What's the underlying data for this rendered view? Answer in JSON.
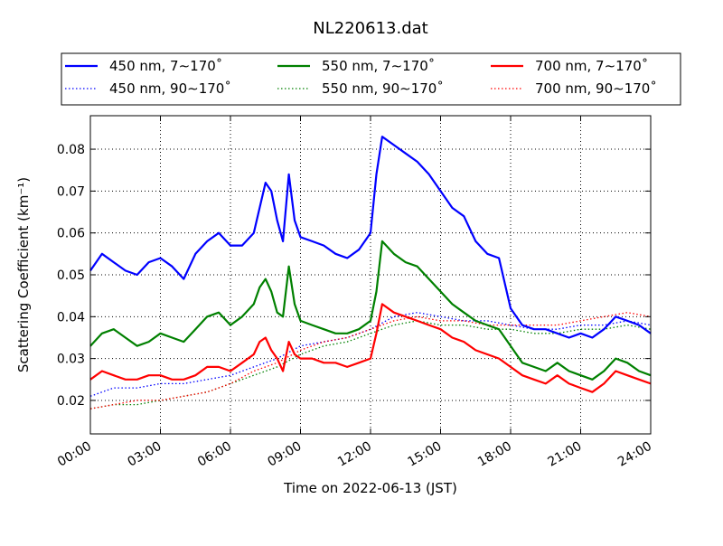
{
  "chart_data": {
    "type": "line",
    "title": "NL220613.dat",
    "xlabel": "Time on 2022-06-13 (JST)",
    "ylabel": "Scattering Coefficient (km⁻¹)",
    "x_unit": "hours",
    "xlim": [
      0,
      24
    ],
    "ylim": [
      0.012,
      0.088
    ],
    "xticks": [
      0,
      3,
      6,
      9,
      12,
      15,
      18,
      21,
      24
    ],
    "xtick_labels": [
      "00:00",
      "03:00",
      "06:00",
      "09:00",
      "12:00",
      "15:00",
      "18:00",
      "21:00",
      "24:00"
    ],
    "yticks": [
      0.02,
      0.03,
      0.04,
      0.05,
      0.06,
      0.07,
      0.08
    ],
    "ytick_labels": [
      "0.02",
      "0.03",
      "0.04",
      "0.05",
      "0.06",
      "0.07",
      "0.08"
    ],
    "grid": true,
    "legend_position": "top, above plot, 3 columns",
    "series": [
      {
        "name": "450 nm, 7∼170˚",
        "color": "#0000ff",
        "style": "solid",
        "x": [
          0,
          0.5,
          1,
          1.5,
          2,
          2.5,
          3,
          3.5,
          4,
          4.5,
          5,
          5.5,
          6,
          6.5,
          7,
          7.25,
          7.5,
          7.75,
          8,
          8.25,
          8.5,
          8.75,
          9,
          9.5,
          10,
          10.5,
          11,
          11.5,
          12,
          12.25,
          12.5,
          13,
          13.5,
          14,
          14.5,
          15,
          15.5,
          16,
          16.5,
          17,
          17.5,
          18,
          18.5,
          19,
          19.5,
          20,
          20.5,
          21,
          21.5,
          22,
          22.5,
          23,
          23.5,
          24
        ],
        "values": [
          0.051,
          0.055,
          0.053,
          0.051,
          0.05,
          0.053,
          0.054,
          0.052,
          0.049,
          0.055,
          0.058,
          0.06,
          0.057,
          0.057,
          0.06,
          0.066,
          0.072,
          0.07,
          0.063,
          0.058,
          0.074,
          0.063,
          0.059,
          0.058,
          0.057,
          0.055,
          0.054,
          0.056,
          0.06,
          0.074,
          0.083,
          0.081,
          0.079,
          0.077,
          0.074,
          0.07,
          0.066,
          0.064,
          0.058,
          0.055,
          0.054,
          0.042,
          0.038,
          0.037,
          0.037,
          0.036,
          0.035,
          0.036,
          0.035,
          0.037,
          0.04,
          0.039,
          0.038,
          0.036
        ]
      },
      {
        "name": "450 nm, 90∼170˚",
        "color": "#0000ff",
        "style": "dotted",
        "x": [
          0,
          1,
          2,
          3,
          4,
          5,
          6,
          7,
          8,
          9,
          10,
          11,
          12,
          13,
          14,
          15,
          16,
          17,
          18,
          19,
          20,
          21,
          22,
          23,
          24
        ],
        "values": [
          0.021,
          0.023,
          0.023,
          0.024,
          0.024,
          0.025,
          0.026,
          0.028,
          0.03,
          0.033,
          0.034,
          0.035,
          0.037,
          0.04,
          0.041,
          0.04,
          0.039,
          0.039,
          0.038,
          0.037,
          0.037,
          0.038,
          0.038,
          0.039,
          0.038
        ]
      },
      {
        "name": "550 nm, 7∼170˚",
        "color": "#008000",
        "style": "solid",
        "x": [
          0,
          0.5,
          1,
          1.5,
          2,
          2.5,
          3,
          3.5,
          4,
          4.5,
          5,
          5.5,
          6,
          6.5,
          7,
          7.25,
          7.5,
          7.75,
          8,
          8.25,
          8.5,
          8.75,
          9,
          9.5,
          10,
          10.5,
          11,
          11.5,
          12,
          12.25,
          12.5,
          13,
          13.5,
          14,
          14.5,
          15,
          15.5,
          16,
          16.5,
          17,
          17.5,
          18,
          18.5,
          19,
          19.5,
          20,
          20.5,
          21,
          21.5,
          22,
          22.5,
          23,
          23.5,
          24
        ],
        "values": [
          0.033,
          0.036,
          0.037,
          0.035,
          0.033,
          0.034,
          0.036,
          0.035,
          0.034,
          0.037,
          0.04,
          0.041,
          0.038,
          0.04,
          0.043,
          0.047,
          0.049,
          0.046,
          0.041,
          0.04,
          0.052,
          0.043,
          0.039,
          0.038,
          0.037,
          0.036,
          0.036,
          0.037,
          0.039,
          0.046,
          0.058,
          0.055,
          0.053,
          0.052,
          0.049,
          0.046,
          0.043,
          0.041,
          0.039,
          0.038,
          0.037,
          0.033,
          0.029,
          0.028,
          0.027,
          0.029,
          0.027,
          0.026,
          0.025,
          0.027,
          0.03,
          0.029,
          0.027,
          0.026
        ]
      },
      {
        "name": "550 nm, 90∼170˚",
        "color": "#008000",
        "style": "dotted",
        "x": [
          0,
          1,
          2,
          3,
          4,
          5,
          6,
          7,
          8,
          9,
          10,
          11,
          12,
          13,
          14,
          15,
          16,
          17,
          18,
          19,
          20,
          21,
          22,
          23,
          24
        ],
        "values": [
          0.018,
          0.019,
          0.019,
          0.02,
          0.021,
          0.022,
          0.024,
          0.026,
          0.028,
          0.031,
          0.033,
          0.034,
          0.036,
          0.038,
          0.039,
          0.038,
          0.038,
          0.037,
          0.037,
          0.036,
          0.036,
          0.037,
          0.037,
          0.038,
          0.037
        ]
      },
      {
        "name": "700 nm, 7∼170˚",
        "color": "#ff0000",
        "style": "solid",
        "x": [
          0,
          0.5,
          1,
          1.5,
          2,
          2.5,
          3,
          3.5,
          4,
          4.5,
          5,
          5.5,
          6,
          6.5,
          7,
          7.25,
          7.5,
          7.75,
          8,
          8.25,
          8.5,
          8.75,
          9,
          9.5,
          10,
          10.5,
          11,
          11.5,
          12,
          12.25,
          12.5,
          13,
          13.5,
          14,
          14.5,
          15,
          15.5,
          16,
          16.5,
          17,
          17.5,
          18,
          18.5,
          19,
          19.5,
          20,
          20.5,
          21,
          21.5,
          22,
          22.5,
          23,
          23.5,
          24
        ],
        "values": [
          0.025,
          0.027,
          0.026,
          0.025,
          0.025,
          0.026,
          0.026,
          0.025,
          0.025,
          0.026,
          0.028,
          0.028,
          0.027,
          0.029,
          0.031,
          0.034,
          0.035,
          0.032,
          0.03,
          0.027,
          0.034,
          0.031,
          0.03,
          0.03,
          0.029,
          0.029,
          0.028,
          0.029,
          0.03,
          0.036,
          0.043,
          0.041,
          0.04,
          0.039,
          0.038,
          0.037,
          0.035,
          0.034,
          0.032,
          0.031,
          0.03,
          0.028,
          0.026,
          0.025,
          0.024,
          0.026,
          0.024,
          0.023,
          0.022,
          0.024,
          0.027,
          0.026,
          0.025,
          0.024
        ]
      },
      {
        "name": "700 nm, 90∼170˚",
        "color": "#ff0000",
        "style": "dotted",
        "x": [
          0,
          1,
          2,
          3,
          4,
          5,
          6,
          7,
          8,
          9,
          10,
          11,
          12,
          13,
          14,
          15,
          16,
          17,
          18,
          19,
          20,
          21,
          22,
          23,
          24
        ],
        "values": [
          0.018,
          0.019,
          0.02,
          0.02,
          0.021,
          0.022,
          0.024,
          0.027,
          0.029,
          0.032,
          0.034,
          0.035,
          0.037,
          0.039,
          0.04,
          0.039,
          0.039,
          0.038,
          0.038,
          0.038,
          0.038,
          0.039,
          0.04,
          0.041,
          0.04
        ]
      }
    ]
  }
}
